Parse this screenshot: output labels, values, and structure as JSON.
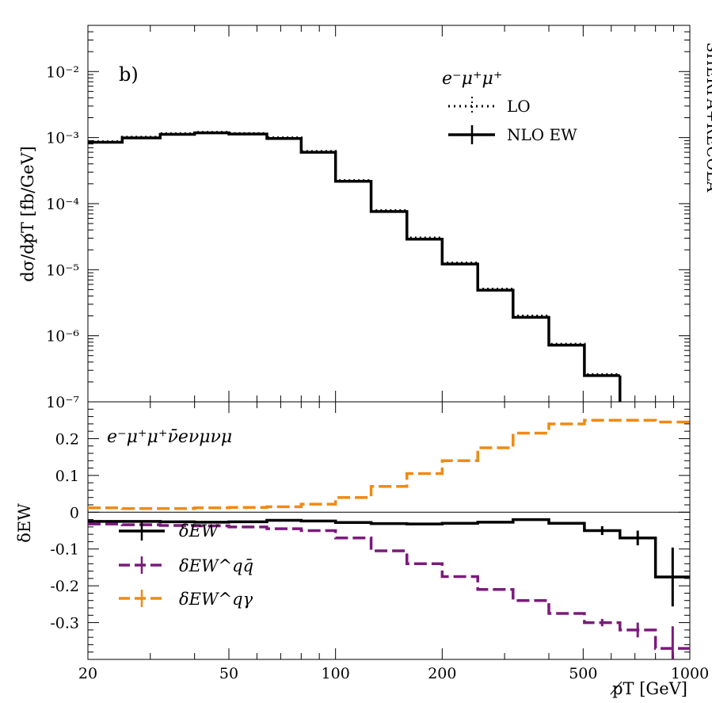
{
  "chart_data": [
    {
      "type": "line",
      "panel": "top",
      "panel_label": "b)",
      "process_label": "e⁻μ⁺μ⁺",
      "ylabel": "dσ/dp̸T [fb/GeV]",
      "yscale": "log",
      "ylim": [
        1e-07,
        0.05
      ],
      "xscale": "log",
      "xlim": [
        20,
        1000
      ],
      "y_tick_labels": [
        "10⁻⁷",
        "10⁻⁶",
        "10⁻⁵",
        "10⁻⁴",
        "10⁻³",
        "10⁻²"
      ],
      "bin_edges": [
        20,
        25,
        32,
        40,
        50,
        64,
        80,
        100,
        126,
        159,
        200,
        252,
        317,
        400,
        504,
        635
      ],
      "series": [
        {
          "name": "LO",
          "style": "dotted",
          "color": "#000000",
          "values": [
            0.00087,
            0.00102,
            0.00115,
            0.00121,
            0.00116,
            0.001,
            0.00062,
            0.000225,
            7.9e-05,
            3.05e-05,
            1.27e-05,
            5.1e-06,
            2e-06,
            7.5e-07,
            2.6e-07
          ]
        },
        {
          "name": "NLO EW",
          "style": "solid",
          "color": "#000000",
          "values": [
            0.00085,
            0.00099,
            0.00112,
            0.00118,
            0.00113,
            0.00097,
            0.0006,
            0.000218,
            7.6e-05,
            2.9e-05,
            1.22e-05,
            4.9e-06,
            1.9e-06,
            7.2e-07,
            2.5e-07
          ]
        }
      ]
    },
    {
      "type": "line",
      "panel": "bottom",
      "process_label": "e⁻μ⁺μ⁺ν̄eνμνμ",
      "ylabel": "δEW",
      "ylim": [
        -0.4,
        0.3
      ],
      "xscale": "log",
      "xlim": [
        20,
        1000
      ],
      "xlabel": "p̸T [GeV]",
      "x_tick_labels": [
        "20",
        "50",
        "100",
        "200",
        "500",
        "1000"
      ],
      "y_tick_labels": [
        "-0.3",
        "-0.2",
        "-0.1",
        "0",
        "0.1",
        "0.2"
      ],
      "bin_edges": [
        20,
        25,
        32,
        40,
        50,
        64,
        80,
        100,
        126,
        159,
        200,
        252,
        317,
        400,
        504,
        635,
        800,
        1000
      ],
      "series": [
        {
          "name": "δEW",
          "color": "#000000",
          "style": "solid",
          "values": [
            -0.025,
            -0.025,
            -0.026,
            -0.027,
            -0.026,
            -0.022,
            -0.024,
            -0.028,
            -0.031,
            -0.032,
            -0.03,
            -0.027,
            -0.02,
            -0.03,
            -0.05,
            -0.07,
            -0.176
          ]
        },
        {
          "name": "δEW^qq̄",
          "color": "#7b1a7b",
          "style": "dashed",
          "values": [
            -0.032,
            -0.034,
            -0.036,
            -0.037,
            -0.04,
            -0.045,
            -0.05,
            -0.07,
            -0.105,
            -0.14,
            -0.175,
            -0.21,
            -0.24,
            -0.275,
            -0.3,
            -0.32,
            -0.37
          ]
        },
        {
          "name": "δEW^qγ",
          "color": "#f08a12",
          "style": "dashed",
          "values": [
            0.012,
            0.01,
            0.01,
            0.012,
            0.013,
            0.015,
            0.022,
            0.04,
            0.07,
            0.105,
            0.14,
            0.175,
            0.215,
            0.24,
            0.25,
            0.25,
            0.245
          ]
        }
      ]
    }
  ],
  "side_label": "SHERPA+RECOLA"
}
